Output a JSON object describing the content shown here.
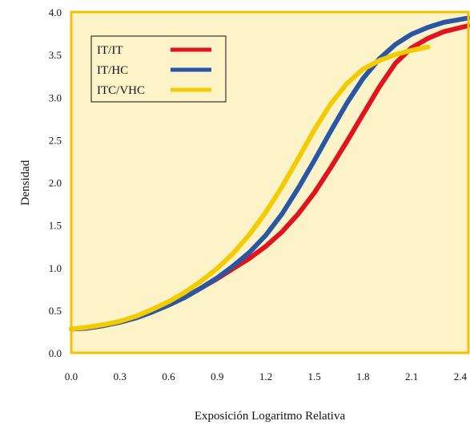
{
  "chart_data": {
    "type": "line",
    "title": "",
    "xlabel": "Exposición Logaritmo Relativa",
    "ylabel": "Densidad",
    "xlim": [
      0.0,
      2.45
    ],
    "ylim": [
      0.0,
      4.0
    ],
    "x_ticks": [
      "0.0",
      "0.3",
      "0.6",
      "0.9",
      "1.2",
      "1.5",
      "1.8",
      "2.1",
      "2.4"
    ],
    "y_ticks": [
      "0.0",
      "0.5",
      "1.0",
      "1.5",
      "2.0",
      "2.5",
      "3.0",
      "3.5",
      "4.0"
    ],
    "grid": false,
    "legend_position": "top-left",
    "plot_background": "#fdf3c8",
    "frame_color": "#f2c200",
    "series": [
      {
        "name": "IT/IT",
        "color": "#e0141e",
        "points": [
          [
            0.0,
            0.28
          ],
          [
            0.1,
            0.29
          ],
          [
            0.2,
            0.32
          ],
          [
            0.3,
            0.36
          ],
          [
            0.4,
            0.41
          ],
          [
            0.5,
            0.48
          ],
          [
            0.6,
            0.56
          ],
          [
            0.7,
            0.65
          ],
          [
            0.8,
            0.76
          ],
          [
            0.9,
            0.87
          ],
          [
            1.0,
            0.99
          ],
          [
            1.1,
            1.11
          ],
          [
            1.2,
            1.25
          ],
          [
            1.3,
            1.42
          ],
          [
            1.4,
            1.63
          ],
          [
            1.5,
            1.88
          ],
          [
            1.6,
            2.17
          ],
          [
            1.7,
            2.48
          ],
          [
            1.8,
            2.8
          ],
          [
            1.9,
            3.12
          ],
          [
            2.0,
            3.4
          ],
          [
            2.1,
            3.58
          ],
          [
            2.2,
            3.69
          ],
          [
            2.3,
            3.77
          ],
          [
            2.45,
            3.84
          ]
        ]
      },
      {
        "name": "IT/HC",
        "color": "#2a56a6",
        "points": [
          [
            0.0,
            0.28
          ],
          [
            0.1,
            0.29
          ],
          [
            0.2,
            0.32
          ],
          [
            0.3,
            0.36
          ],
          [
            0.4,
            0.41
          ],
          [
            0.5,
            0.48
          ],
          [
            0.6,
            0.56
          ],
          [
            0.7,
            0.65
          ],
          [
            0.8,
            0.76
          ],
          [
            0.9,
            0.88
          ],
          [
            1.0,
            1.02
          ],
          [
            1.1,
            1.18
          ],
          [
            1.2,
            1.38
          ],
          [
            1.3,
            1.63
          ],
          [
            1.4,
            1.93
          ],
          [
            1.5,
            2.26
          ],
          [
            1.6,
            2.6
          ],
          [
            1.7,
            2.93
          ],
          [
            1.8,
            3.22
          ],
          [
            1.9,
            3.45
          ],
          [
            2.0,
            3.62
          ],
          [
            2.1,
            3.74
          ],
          [
            2.2,
            3.82
          ],
          [
            2.3,
            3.88
          ],
          [
            2.45,
            3.93
          ]
        ]
      },
      {
        "name": "ITC/VHC",
        "color": "#f2cc00",
        "points": [
          [
            0.0,
            0.28
          ],
          [
            0.1,
            0.3
          ],
          [
            0.2,
            0.33
          ],
          [
            0.3,
            0.37
          ],
          [
            0.4,
            0.43
          ],
          [
            0.5,
            0.51
          ],
          [
            0.6,
            0.6
          ],
          [
            0.7,
            0.71
          ],
          [
            0.8,
            0.84
          ],
          [
            0.9,
            0.99
          ],
          [
            1.0,
            1.17
          ],
          [
            1.1,
            1.39
          ],
          [
            1.2,
            1.65
          ],
          [
            1.3,
            1.95
          ],
          [
            1.4,
            2.28
          ],
          [
            1.5,
            2.62
          ],
          [
            1.6,
            2.92
          ],
          [
            1.7,
            3.16
          ],
          [
            1.8,
            3.33
          ],
          [
            1.9,
            3.43
          ],
          [
            2.0,
            3.5
          ],
          [
            2.1,
            3.55
          ],
          [
            2.2,
            3.59
          ]
        ]
      }
    ]
  }
}
